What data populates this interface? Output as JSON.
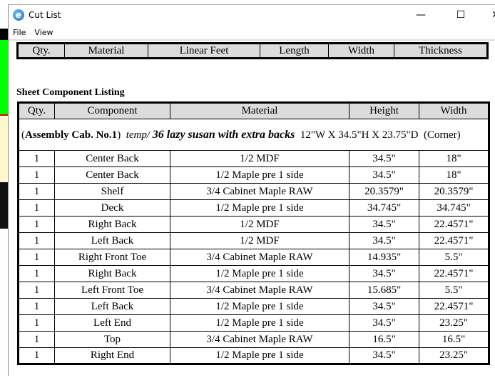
{
  "window": {
    "title": "Cut List",
    "menu": [
      "File",
      "View"
    ]
  },
  "linear_table": {
    "headers": [
      "Qty.",
      "Material",
      "Linear Feet",
      "Length",
      "Width",
      "Thickness"
    ]
  },
  "sheet": {
    "heading": "Sheet Component Listing",
    "headers": [
      "Qty.",
      "Component",
      "Material",
      "Height",
      "Width"
    ],
    "assembly": {
      "label": "Assembly Cab. No.1",
      "prefix": "temp/",
      "name": "36 lazy susan with extra backs",
      "dims": "12\"W X 34.5\"H X 23.75\"D",
      "type": "(Corner)"
    },
    "rows": [
      [
        "1",
        "Center Back",
        "1/2 MDF",
        "34.5\"",
        "18\""
      ],
      [
        "1",
        "Center Back",
        "1/2 Maple pre 1 side",
        "34.5\"",
        "18\""
      ],
      [
        "1",
        "Shelf",
        "3/4 Cabinet Maple RAW",
        "20.3579\"",
        "20.3579\""
      ],
      [
        "1",
        "Deck",
        "1/2 Maple pre 1 side",
        "34.745\"",
        "34.745\""
      ],
      [
        "1",
        "Right Back",
        "1/2 MDF",
        "34.5\"",
        "22.4571\""
      ],
      [
        "1",
        "Left Back",
        "1/2 MDF",
        "34.5\"",
        "22.4571\""
      ],
      [
        "1",
        "Right Front Toe",
        "3/4 Cabinet Maple RAW",
        "14.935\"",
        "5.5\""
      ],
      [
        "1",
        "Right Back",
        "1/2 Maple pre 1 side",
        "34.5\"",
        "22.4571\""
      ],
      [
        "1",
        "Left Front Toe",
        "3/4 Cabinet Maple RAW",
        "15.685\"",
        "5.5\""
      ],
      [
        "1",
        "Left Back",
        "1/2 Maple pre 1 side",
        "34.5\"",
        "22.4571\""
      ],
      [
        "1",
        "Left End",
        "1/2 Maple pre 1 side",
        "34.5\"",
        "23.25\""
      ],
      [
        "1",
        "Top",
        "3/4 Cabinet Maple RAW",
        "16.5\"",
        "16.5\""
      ],
      [
        "1",
        "Right End",
        "1/2 Maple pre 1 side",
        "34.5\"",
        "23.25\""
      ]
    ]
  }
}
